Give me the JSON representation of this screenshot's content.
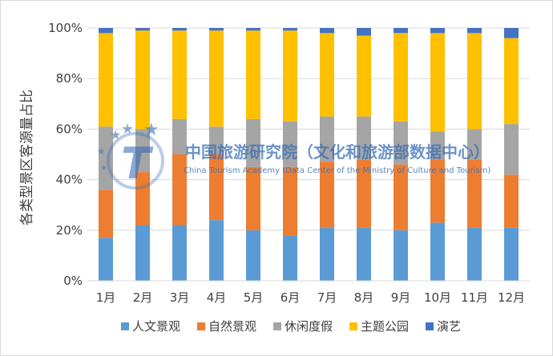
{
  "chart_data": {
    "type": "bar",
    "stacked": "percent",
    "ylabel": "各类型景区客源量占比",
    "xlabel": "",
    "ylim": [
      0,
      100
    ],
    "yticks": [
      "0%",
      "20%",
      "40%",
      "60%",
      "80%",
      "100%"
    ],
    "categories": [
      "1月",
      "2月",
      "3月",
      "4月",
      "5月",
      "6月",
      "7月",
      "8月",
      "9月",
      "10月",
      "11月",
      "12月"
    ],
    "legend_position": "bottom",
    "grid": true,
    "series": [
      {
        "name": "人文景观",
        "color": "#5b9bd5",
        "values": [
          17,
          22,
          22,
          24,
          20,
          18,
          21,
          21,
          20,
          23,
          21,
          21
        ]
      },
      {
        "name": "自然景观",
        "color": "#ed7d31",
        "values": [
          19,
          21,
          28,
          26,
          25,
          27,
          26,
          27,
          26,
          25,
          27,
          21
        ]
      },
      {
        "name": "休闲度假",
        "color": "#a5a5a5",
        "values": [
          25,
          17,
          14,
          11,
          19,
          18,
          18,
          17,
          17,
          11,
          12,
          20
        ]
      },
      {
        "name": "主题公园",
        "color": "#ffc000",
        "values": [
          37,
          39,
          35,
          38,
          35,
          36,
          33,
          32,
          35,
          39,
          38,
          34
        ]
      },
      {
        "name": "演艺",
        "color": "#4472c4",
        "values": [
          2,
          1,
          1,
          1,
          1,
          1,
          2,
          3,
          2,
          2,
          2,
          4
        ]
      }
    ]
  },
  "watermark": {
    "name_cn": "中国旅游研究院（文化和旅游部数据中心）",
    "name_en": "China Tourism Academy (Data Center of the Ministry of Culture and Tourism)",
    "logo_letter": "T"
  }
}
